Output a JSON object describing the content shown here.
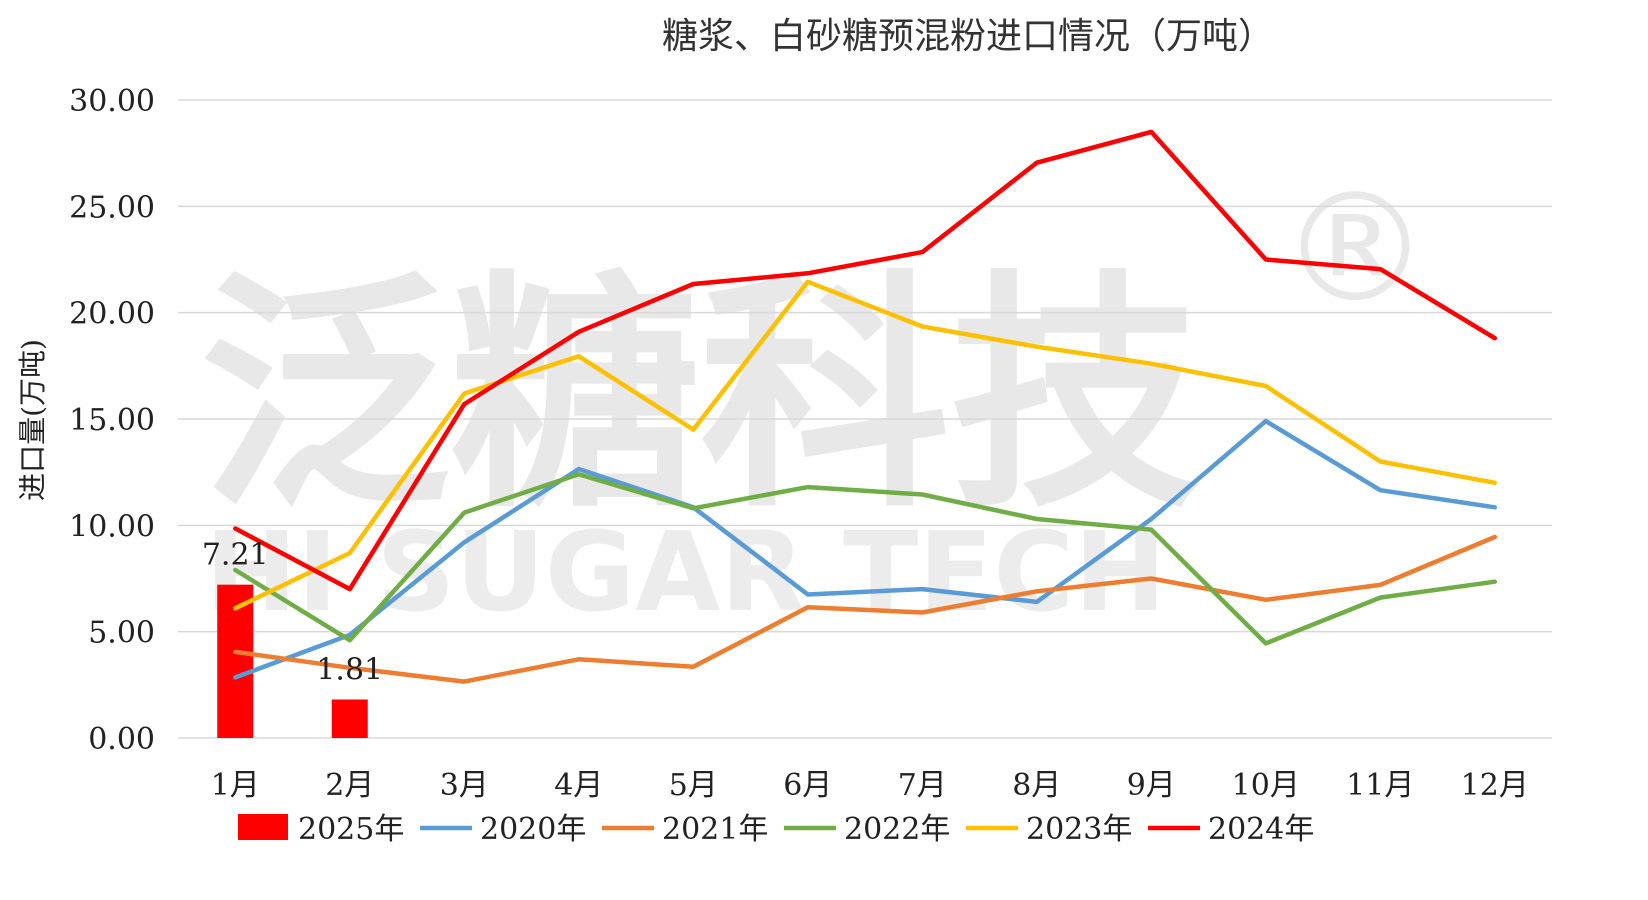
{
  "chart_data": {
    "type": "line",
    "title": "糖浆、白砂糖预混粉进口情况（万吨）",
    "ylabel": "进口量(万吨)",
    "xlabel": "",
    "ylim": [
      0,
      30
    ],
    "yticks": [
      "0.00",
      "5.00",
      "10.00",
      "15.00",
      "20.00",
      "25.00",
      "30.00"
    ],
    "categories": [
      "1月",
      "2月",
      "3月",
      "4月",
      "5月",
      "6月",
      "7月",
      "8月",
      "9月",
      "10月",
      "11月",
      "12月"
    ],
    "grid": true,
    "legend_position": "bottom",
    "bar_series": {
      "name": "2025年",
      "type": "bar",
      "color": "#ff0000",
      "values": [
        7.21,
        1.81
      ],
      "data_labels": [
        "7.21",
        "1.81"
      ]
    },
    "series": [
      {
        "name": "2020年",
        "color": "#5b9bd5",
        "values": [
          2.85,
          4.85,
          9.2,
          12.65,
          10.85,
          6.75,
          7.0,
          6.4,
          10.3,
          14.9,
          11.65,
          10.85
        ]
      },
      {
        "name": "2021年",
        "color": "#ed7d31",
        "values": [
          4.05,
          3.3,
          2.65,
          3.7,
          3.35,
          6.15,
          5.9,
          6.9,
          7.5,
          6.5,
          7.2,
          9.45
        ]
      },
      {
        "name": "2022年",
        "color": "#70ad47",
        "values": [
          7.9,
          4.6,
          10.6,
          12.4,
          10.8,
          11.8,
          11.45,
          10.3,
          9.8,
          4.45,
          6.6,
          7.35
        ]
      },
      {
        "name": "2023年",
        "color": "#ffc000",
        "values": [
          6.1,
          8.7,
          16.2,
          17.95,
          14.5,
          21.45,
          19.35,
          18.4,
          17.6,
          16.55,
          13.0,
          12.0
        ]
      },
      {
        "name": "2024年",
        "color": "#ff0000",
        "values": [
          9.85,
          7.0,
          15.7,
          19.1,
          21.35,
          21.85,
          22.85,
          27.05,
          28.5,
          22.5,
          22.05,
          18.8
        ]
      }
    ],
    "watermark": {
      "cn": "泛糖科技",
      "en": "HI SUGAR TECH",
      "reg": "®"
    }
  }
}
